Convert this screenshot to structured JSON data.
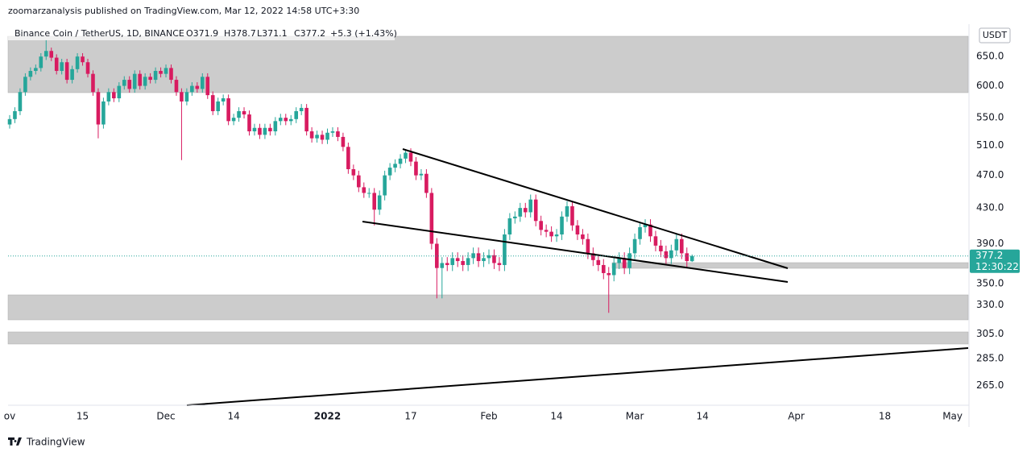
{
  "header": {
    "byline": "zoomarzanalysis published on TradingView.com, Mar 12, 2022 14:58 UTC+3:30"
  },
  "chart_data": {
    "type": "candlestick",
    "legend": {
      "symbol": "Binance Coin / TetherUS, 1D, BINANCE",
      "open": "O371.9",
      "high": "H378.7",
      "low": "L371.1",
      "close": "C377.2",
      "change": "+5.3 (+1.43%)"
    },
    "currency": "USDT",
    "countdown": "12:30:22",
    "up_color": "#26a69a",
    "down_color": "#d81b60",
    "log_scale": true,
    "grid": false,
    "x": [
      "2021-11-01",
      "2021-11-02",
      "2021-11-03",
      "2021-11-04",
      "2021-11-05",
      "2021-11-06",
      "2021-11-07",
      "2021-11-08",
      "2021-11-09",
      "2021-11-10",
      "2021-11-11",
      "2021-11-12",
      "2021-11-13",
      "2021-11-14",
      "2021-11-15",
      "2021-11-16",
      "2021-11-17",
      "2021-11-18",
      "2021-11-19",
      "2021-11-20",
      "2021-11-21",
      "2021-11-22",
      "2021-11-23",
      "2021-11-24",
      "2021-11-25",
      "2021-11-26",
      "2021-11-27",
      "2021-11-28",
      "2021-11-29",
      "2021-11-30",
      "2021-12-01",
      "2021-12-02",
      "2021-12-03",
      "2021-12-04",
      "2021-12-05",
      "2021-12-06",
      "2021-12-07",
      "2021-12-08",
      "2021-12-09",
      "2021-12-10",
      "2021-12-11",
      "2021-12-12",
      "2021-12-13",
      "2021-12-14",
      "2021-12-15",
      "2021-12-16",
      "2021-12-17",
      "2021-12-18",
      "2021-12-19",
      "2021-12-20",
      "2021-12-21",
      "2021-12-22",
      "2021-12-23",
      "2021-12-24",
      "2021-12-25",
      "2021-12-26",
      "2021-12-27",
      "2021-12-28",
      "2021-12-29",
      "2021-12-30",
      "2021-12-31",
      "2022-01-01",
      "2022-01-02",
      "2022-01-03",
      "2022-01-04",
      "2022-01-05",
      "2022-01-06",
      "2022-01-07",
      "2022-01-08",
      "2022-01-09",
      "2022-01-10",
      "2022-01-11",
      "2022-01-12",
      "2022-01-13",
      "2022-01-14",
      "2022-01-15",
      "2022-01-16",
      "2022-01-17",
      "2022-01-18",
      "2022-01-19",
      "2022-01-20",
      "2022-01-21",
      "2022-01-22",
      "2022-01-23",
      "2022-01-24",
      "2022-01-25",
      "2022-01-26",
      "2022-01-27",
      "2022-01-28",
      "2022-01-29",
      "2022-01-30",
      "2022-01-31",
      "2022-02-01",
      "2022-02-02",
      "2022-02-03",
      "2022-02-04",
      "2022-02-05",
      "2022-02-06",
      "2022-02-07",
      "2022-02-08",
      "2022-02-09",
      "2022-02-10",
      "2022-02-11",
      "2022-02-12",
      "2022-02-13",
      "2022-02-14",
      "2022-02-15",
      "2022-02-16",
      "2022-02-17",
      "2022-02-18",
      "2022-02-19",
      "2022-02-20",
      "2022-02-21",
      "2022-02-22",
      "2022-02-23",
      "2022-02-24",
      "2022-02-25",
      "2022-02-26",
      "2022-02-27",
      "2022-02-28",
      "2022-03-01",
      "2022-03-02",
      "2022-03-03",
      "2022-03-04",
      "2022-03-05",
      "2022-03-06",
      "2022-03-07",
      "2022-03-08",
      "2022-03-09",
      "2022-03-10",
      "2022-03-11",
      "2022-03-12"
    ],
    "open": [
      540,
      548,
      560,
      590,
      615,
      625,
      630,
      650,
      660,
      648,
      625,
      640,
      610,
      628,
      650,
      640,
      620,
      590,
      540,
      575,
      590,
      580,
      600,
      610,
      595,
      620,
      600,
      615,
      610,
      625,
      620,
      630,
      610,
      590,
      575,
      590,
      600,
      595,
      615,
      585,
      560,
      575,
      580,
      545,
      550,
      560,
      555,
      530,
      535,
      525,
      535,
      530,
      545,
      550,
      545,
      548,
      560,
      565,
      530,
      520,
      525,
      518,
      528,
      530,
      522,
      508,
      478,
      470,
      455,
      448,
      448,
      428,
      445,
      470,
      480,
      485,
      492,
      500,
      488,
      470,
      472,
      448,
      390,
      365,
      370,
      368,
      375,
      372,
      368,
      375,
      380,
      372,
      375,
      378,
      370,
      368,
      400,
      418,
      420,
      430,
      425,
      440,
      415,
      405,
      403,
      398,
      400,
      420,
      432,
      410,
      400,
      395,
      380,
      373,
      368,
      360,
      358,
      370,
      375,
      365,
      380,
      395,
      408,
      411,
      398,
      388,
      382,
      375,
      383,
      395,
      380,
      371.9
    ],
    "high": [
      554,
      566,
      596,
      621,
      631,
      636,
      656,
      680,
      666,
      654,
      646,
      646,
      634,
      656,
      656,
      646,
      626,
      596,
      581,
      596,
      596,
      606,
      616,
      616,
      626,
      626,
      621,
      621,
      631,
      631,
      636,
      636,
      616,
      596,
      596,
      606,
      606,
      621,
      621,
      591,
      581,
      586,
      586,
      556,
      566,
      566,
      561,
      541,
      541,
      541,
      541,
      551,
      556,
      556,
      554,
      566,
      571,
      571,
      536,
      531,
      531,
      534,
      536,
      536,
      528,
      514,
      484,
      476,
      461,
      454,
      454,
      451,
      476,
      486,
      491,
      498,
      505,
      506,
      494,
      478,
      478,
      454,
      396,
      376,
      376,
      381,
      381,
      378,
      381,
      386,
      386,
      381,
      384,
      384,
      376,
      406,
      424,
      426,
      436,
      436,
      446,
      446,
      421,
      411,
      409,
      406,
      426,
      438,
      438,
      416,
      406,
      401,
      386,
      379,
      374,
      366,
      376,
      381,
      381,
      386,
      401,
      414,
      417,
      417,
      404,
      394,
      388,
      389,
      401,
      401,
      386,
      378.7
    ],
    "low": [
      534,
      542,
      554,
      584,
      609,
      619,
      624,
      644,
      642,
      619,
      619,
      604,
      604,
      622,
      634,
      614,
      584,
      520,
      534,
      569,
      574,
      574,
      594,
      589,
      589,
      594,
      594,
      604,
      604,
      614,
      614,
      604,
      584,
      490,
      569,
      584,
      589,
      589,
      579,
      554,
      554,
      569,
      539,
      539,
      544,
      549,
      524,
      524,
      519,
      519,
      524,
      524,
      539,
      539,
      539,
      542,
      554,
      524,
      514,
      514,
      512,
      512,
      522,
      516,
      502,
      472,
      464,
      449,
      442,
      442,
      410,
      422,
      439,
      464,
      474,
      479,
      486,
      482,
      464,
      464,
      442,
      384,
      336,
      336,
      362,
      362,
      366,
      362,
      362,
      369,
      366,
      366,
      369,
      364,
      362,
      362,
      394,
      412,
      414,
      419,
      419,
      409,
      399,
      397,
      392,
      392,
      394,
      414,
      404,
      394,
      389,
      374,
      367,
      362,
      354,
      323,
      352,
      364,
      359,
      359,
      374,
      389,
      402,
      392,
      382,
      376,
      369,
      369,
      377,
      374,
      366,
      371.1
    ],
    "close": [
      548,
      560,
      590,
      615,
      625,
      630,
      650,
      660,
      648,
      625,
      640,
      610,
      628,
      650,
      640,
      620,
      590,
      540,
      575,
      590,
      580,
      600,
      610,
      595,
      620,
      600,
      615,
      610,
      625,
      620,
      630,
      610,
      590,
      575,
      590,
      600,
      595,
      615,
      585,
      560,
      575,
      580,
      545,
      550,
      560,
      555,
      530,
      535,
      525,
      535,
      530,
      545,
      550,
      545,
      548,
      560,
      565,
      530,
      520,
      525,
      518,
      528,
      530,
      522,
      508,
      478,
      470,
      455,
      448,
      448,
      428,
      445,
      470,
      480,
      485,
      492,
      500,
      488,
      470,
      472,
      448,
      390,
      365,
      370,
      368,
      375,
      372,
      368,
      375,
      380,
      372,
      375,
      378,
      370,
      368,
      400,
      418,
      420,
      430,
      425,
      440,
      415,
      405,
      403,
      398,
      400,
      420,
      432,
      410,
      400,
      395,
      380,
      373,
      368,
      360,
      358,
      370,
      375,
      365,
      380,
      395,
      408,
      411,
      398,
      388,
      382,
      375,
      383,
      395,
      380,
      372,
      377.2
    ],
    "xlim": [
      "2021-11-01",
      "2022-05-04"
    ],
    "xticks": [
      {
        "value": "2021-11-01",
        "label": "ov"
      },
      {
        "value": "2021-11-15",
        "label": "15"
      },
      {
        "value": "2021-12-01",
        "label": "Dec"
      },
      {
        "value": "2021-12-14",
        "label": "14"
      },
      {
        "value": "2022-01-01",
        "label": "2022"
      },
      {
        "value": "2022-01-17",
        "label": "17"
      },
      {
        "value": "2022-02-01",
        "label": "Feb"
      },
      {
        "value": "2022-02-14",
        "label": "14"
      },
      {
        "value": "2022-03-01",
        "label": "Mar"
      },
      {
        "value": "2022-03-14",
        "label": "14"
      },
      {
        "value": "2022-04-01",
        "label": "Apr"
      },
      {
        "value": "2022-04-18",
        "label": "18"
      },
      {
        "value": "2022-05-01",
        "label": "May"
      }
    ],
    "ylim": [
      251,
      687
    ],
    "yticks": [
      {
        "value": 650,
        "label": "650.0"
      },
      {
        "value": 600,
        "label": "600.0"
      },
      {
        "value": 550,
        "label": "550.0"
      },
      {
        "value": 510,
        "label": "510.0"
      },
      {
        "value": 470,
        "label": "470.0"
      },
      {
        "value": 430,
        "label": "430.0"
      },
      {
        "value": 390,
        "label": "390.0"
      },
      {
        "value": 350,
        "label": "350.0"
      },
      {
        "value": 330,
        "label": "330.0"
      },
      {
        "value": 305,
        "label": "305.0"
      },
      {
        "value": 285,
        "label": "285.0"
      },
      {
        "value": 265,
        "label": "265.0"
      }
    ]
  },
  "footer": {
    "brand": "TradingView"
  }
}
